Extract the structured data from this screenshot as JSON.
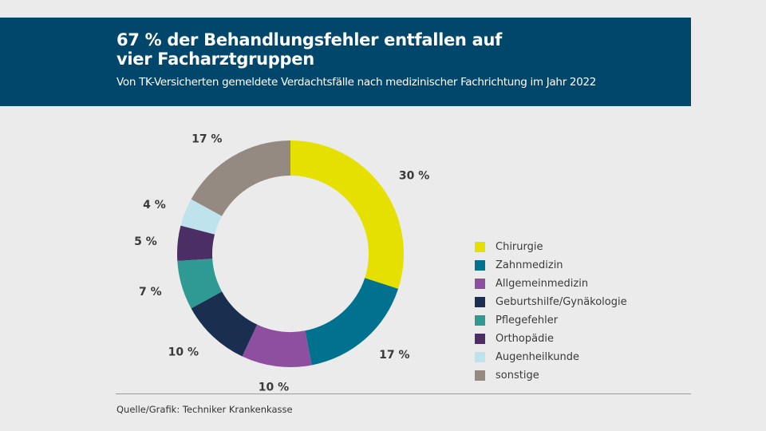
{
  "header": {
    "title_line1": "67 % der Behandlungsfehler entfallen auf",
    "title_line2": "vier Facharztgruppen",
    "subtitle": "Von TK-Versicherten gemeldete Verdachtsfälle nach medizinischer Fachrichtung im Jahr 2022"
  },
  "chart_data": {
    "type": "pie",
    "variant": "donut",
    "categories": [
      "Chirurgie",
      "Zahnmedizin",
      "Allgemeinmedizin",
      "Geburtshilfe/Gynäkologie",
      "Pflegefehler",
      "Orthopädie",
      "Augenheilkunde",
      "sonstige"
    ],
    "values": [
      30,
      17,
      10,
      10,
      7,
      5,
      4,
      17
    ],
    "labels": [
      "30 %",
      "17 %",
      "10 %",
      "10 %",
      "7 %",
      "5 %",
      "4 %",
      "17 %"
    ],
    "colors": [
      "#e6e000",
      "#00728f",
      "#8e4fa0",
      "#1a2f50",
      "#2f9a94",
      "#4b2e63",
      "#bfe3ec",
      "#958a82"
    ],
    "unit": "%",
    "legend_position": "right"
  },
  "source": "Quelle/Grafik: Techniker Krankenkasse"
}
